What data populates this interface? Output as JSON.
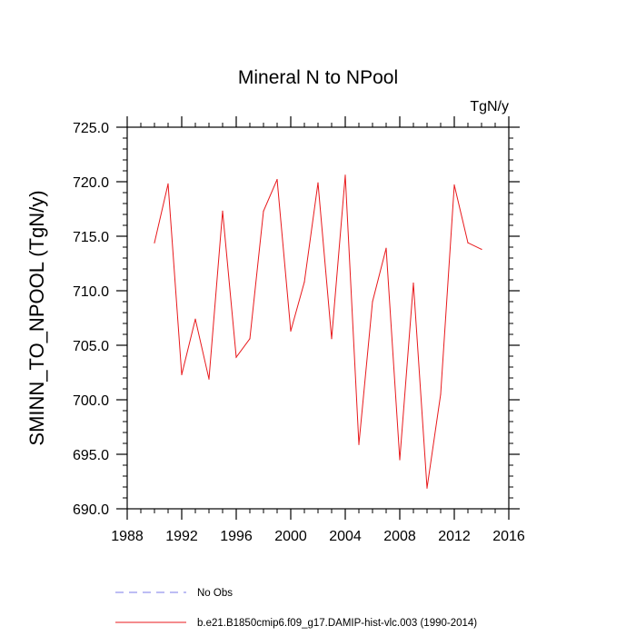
{
  "chart_data": {
    "type": "line",
    "title": "Mineral N to NPool",
    "units": "TgN/y",
    "ylabel": "SMINN_TO_NPOOL  (TgN/y)",
    "xlabel": "",
    "xlim": [
      1988,
      2016
    ],
    "ylim": [
      690,
      725
    ],
    "xticks": [
      1988,
      1992,
      1996,
      2000,
      2004,
      2008,
      2012,
      2016
    ],
    "yticks": [
      690,
      695,
      700,
      705,
      710,
      715,
      720,
      725
    ],
    "xtick_labels": [
      "1988",
      "1992",
      "1996",
      "2000",
      "2004",
      "2008",
      "2012",
      "2016"
    ],
    "ytick_labels": [
      "690.0",
      "695.0",
      "700.0",
      "705.0",
      "710.0",
      "715.0",
      "720.0",
      "725.0"
    ],
    "series": [
      {
        "name": "b.e21.B1850cmip6.f09_g17.DAMIP-hist-vlc.003 (1990-2014)",
        "color": "#e8191c",
        "x": [
          1990,
          1991,
          1992,
          1993,
          1994,
          1995,
          1996,
          1997,
          1998,
          1999,
          2000,
          2001,
          2002,
          2003,
          2004,
          2005,
          2006,
          2007,
          2008,
          2009,
          2010,
          2011,
          2012,
          2013,
          2014
        ],
        "values": [
          714.4,
          719.8,
          702.3,
          707.4,
          701.9,
          717.3,
          703.9,
          705.6,
          717.3,
          720.2,
          706.3,
          710.8,
          719.9,
          705.6,
          720.6,
          695.9,
          709.0,
          713.9,
          694.5,
          710.7,
          691.9,
          700.5,
          719.7,
          714.4,
          713.8
        ]
      }
    ],
    "legend": [
      {
        "label": "No Obs",
        "color": "#7b7bea",
        "style": "dashed"
      },
      {
        "label": "b.e21.B1850cmip6.f09_g17.DAMIP-hist-vlc.003 (1990-2014)",
        "color": "#e8191c",
        "style": "solid"
      }
    ]
  }
}
